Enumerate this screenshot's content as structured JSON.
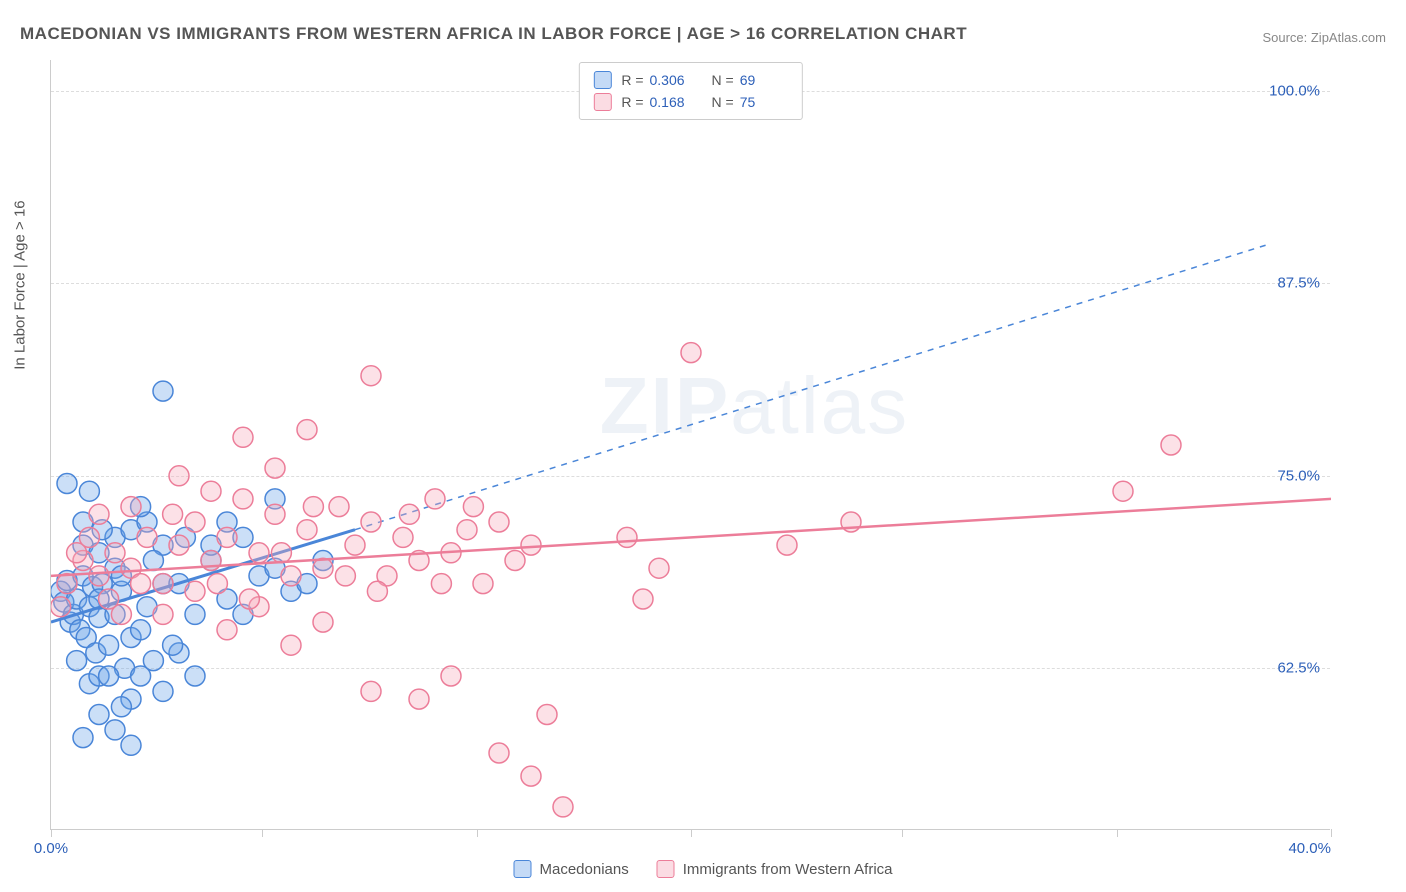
{
  "title": "MACEDONIAN VS IMMIGRANTS FROM WESTERN AFRICA IN LABOR FORCE | AGE > 16 CORRELATION CHART",
  "source_label": "Source: ",
  "source_value": "ZipAtlas.com",
  "ylabel": "In Labor Force | Age > 16",
  "watermark": "ZIPatlas",
  "chart": {
    "type": "scatter",
    "background_color": "#ffffff",
    "grid_color": "#dddddd",
    "axis_color": "#cccccc",
    "xlim": [
      0,
      40
    ],
    "ylim": [
      52,
      102
    ],
    "x_ticks": [
      0,
      6.6,
      13.3,
      20,
      26.6,
      33.3,
      40
    ],
    "x_tick_labels_shown": {
      "0": "0.0%",
      "40": "40.0%"
    },
    "y_gridlines": [
      62.5,
      75.0,
      87.5,
      100.0
    ],
    "y_tick_labels": [
      "62.5%",
      "75.0%",
      "87.5%",
      "100.0%"
    ],
    "y_tick_color": "#2c5fb8",
    "x_tick_color": "#2c5fb8",
    "marker_radius": 10,
    "marker_stroke_width": 1.5,
    "marker_fill_opacity": 0.35,
    "series": [
      {
        "name": "Macedonians",
        "color": "#6ba3e8",
        "stroke": "#4a86d8",
        "stats": {
          "R": "0.306",
          "N": "69"
        },
        "trendline": {
          "x1": 0,
          "y1": 65.5,
          "x2": 9.5,
          "y2": 71.5,
          "solid": true,
          "width": 3
        },
        "trendline_ext": {
          "x1": 9.5,
          "y1": 71.5,
          "x2": 38,
          "y2": 90,
          "dashed": true,
          "width": 1.5
        },
        "points": [
          [
            0.3,
            67.5
          ],
          [
            0.4,
            66.8
          ],
          [
            0.5,
            68.2
          ],
          [
            0.6,
            65.5
          ],
          [
            0.7,
            66.0
          ],
          [
            0.8,
            67.0
          ],
          [
            0.9,
            65.0
          ],
          [
            1.0,
            68.5
          ],
          [
            1.1,
            64.5
          ],
          [
            1.2,
            66.5
          ],
          [
            1.3,
            67.8
          ],
          [
            1.4,
            63.5
          ],
          [
            1.5,
            65.8
          ],
          [
            1.6,
            68.0
          ],
          [
            1.0,
            70.5
          ],
          [
            1.2,
            61.5
          ],
          [
            1.5,
            62.0
          ],
          [
            1.8,
            64.0
          ],
          [
            2.0,
            66.0
          ],
          [
            2.2,
            67.5
          ],
          [
            2.5,
            64.5
          ],
          [
            2.0,
            71.0
          ],
          [
            2.3,
            62.5
          ],
          [
            2.5,
            60.5
          ],
          [
            2.8,
            65.0
          ],
          [
            3.0,
            66.5
          ],
          [
            3.2,
            63.0
          ],
          [
            3.5,
            68.0
          ],
          [
            0.5,
            74.5
          ],
          [
            1.0,
            72.0
          ],
          [
            1.5,
            70.0
          ],
          [
            2.0,
            69.0
          ],
          [
            2.5,
            71.5
          ],
          [
            1.8,
            62.0
          ],
          [
            2.2,
            60.0
          ],
          [
            1.0,
            58.0
          ],
          [
            1.5,
            59.5
          ],
          [
            2.0,
            58.5
          ],
          [
            2.5,
            57.5
          ],
          [
            1.2,
            74.0
          ],
          [
            3.5,
            80.5
          ],
          [
            3.0,
            72.0
          ],
          [
            3.5,
            70.5
          ],
          [
            4.0,
            68.0
          ],
          [
            4.5,
            66.0
          ],
          [
            5.0,
            69.5
          ],
          [
            5.5,
            67.0
          ],
          [
            6.0,
            71.0
          ],
          [
            6.5,
            68.5
          ],
          [
            7.0,
            69.0
          ],
          [
            7.5,
            67.5
          ],
          [
            7.0,
            73.5
          ],
          [
            8.0,
            68.0
          ],
          [
            8.5,
            69.5
          ],
          [
            4.0,
            63.5
          ],
          [
            4.5,
            62.0
          ],
          [
            5.0,
            70.5
          ],
          [
            5.5,
            72.0
          ],
          [
            6.0,
            66.0
          ],
          [
            3.8,
            64.0
          ],
          [
            4.2,
            71.0
          ],
          [
            2.8,
            73.0
          ],
          [
            3.2,
            69.5
          ],
          [
            1.5,
            67.0
          ],
          [
            2.2,
            68.5
          ],
          [
            0.8,
            63.0
          ],
          [
            1.6,
            71.5
          ],
          [
            2.8,
            62.0
          ],
          [
            3.5,
            61.0
          ]
        ]
      },
      {
        "name": "Immigrants from Western Africa",
        "color": "#f5a8ba",
        "stroke": "#ec7d99",
        "stats": {
          "R": "0.168",
          "N": "75"
        },
        "trendline": {
          "x1": 0,
          "y1": 68.5,
          "x2": 40,
          "y2": 73.5,
          "solid": true,
          "width": 2.5
        },
        "points": [
          [
            0.5,
            68.0
          ],
          [
            1.0,
            69.5
          ],
          [
            1.5,
            68.5
          ],
          [
            2.0,
            70.0
          ],
          [
            2.5,
            69.0
          ],
          [
            3.0,
            71.0
          ],
          [
            3.5,
            68.0
          ],
          [
            4.0,
            70.5
          ],
          [
            4.5,
            72.0
          ],
          [
            5.0,
            69.5
          ],
          [
            5.5,
            71.0
          ],
          [
            6.0,
            73.5
          ],
          [
            6.5,
            70.0
          ],
          [
            7.0,
            72.5
          ],
          [
            7.5,
            68.5
          ],
          [
            8.0,
            71.5
          ],
          [
            8.5,
            69.0
          ],
          [
            9.0,
            73.0
          ],
          [
            9.5,
            70.5
          ],
          [
            10.0,
            72.0
          ],
          [
            10.5,
            68.5
          ],
          [
            11.0,
            71.0
          ],
          [
            11.5,
            69.5
          ],
          [
            12.0,
            73.5
          ],
          [
            12.5,
            70.0
          ],
          [
            13.0,
            71.5
          ],
          [
            13.5,
            68.0
          ],
          [
            14.0,
            72.0
          ],
          [
            14.5,
            69.5
          ],
          [
            15.0,
            70.5
          ],
          [
            4.0,
            75.0
          ],
          [
            5.0,
            74.0
          ],
          [
            6.0,
            77.5
          ],
          [
            7.0,
            75.5
          ],
          [
            8.0,
            78.0
          ],
          [
            10.0,
            81.5
          ],
          [
            5.5,
            65.0
          ],
          [
            6.5,
            66.5
          ],
          [
            7.5,
            64.0
          ],
          [
            8.5,
            65.5
          ],
          [
            10.0,
            61.0
          ],
          [
            11.5,
            60.5
          ],
          [
            12.5,
            62.0
          ],
          [
            14.0,
            57.0
          ],
          [
            15.0,
            55.5
          ],
          [
            15.5,
            59.5
          ],
          [
            16.0,
            53.5
          ],
          [
            18.0,
            71.0
          ],
          [
            18.5,
            67.0
          ],
          [
            19.0,
            69.0
          ],
          [
            20.0,
            83.0
          ],
          [
            23.0,
            70.5
          ],
          [
            25.0,
            72.0
          ],
          [
            35.0,
            77.0
          ],
          [
            33.5,
            74.0
          ],
          [
            1.5,
            72.5
          ],
          [
            2.5,
            73.0
          ],
          [
            3.5,
            66.0
          ],
          [
            4.5,
            67.5
          ],
          [
            0.8,
            70.0
          ],
          [
            1.8,
            67.0
          ],
          [
            2.8,
            68.0
          ],
          [
            3.8,
            72.5
          ],
          [
            5.2,
            68.0
          ],
          [
            6.2,
            67.0
          ],
          [
            7.2,
            70.0
          ],
          [
            8.2,
            73.0
          ],
          [
            9.2,
            68.5
          ],
          [
            10.2,
            67.5
          ],
          [
            11.2,
            72.5
          ],
          [
            12.2,
            68.0
          ],
          [
            13.2,
            73.0
          ],
          [
            0.3,
            66.5
          ],
          [
            1.2,
            71.0
          ],
          [
            2.2,
            66.0
          ]
        ]
      }
    ]
  },
  "legend_top": {
    "r_label": "R =",
    "n_label": "N ="
  },
  "legend_bottom": {
    "series1": "Macedonians",
    "series2": "Immigrants from Western Africa"
  }
}
